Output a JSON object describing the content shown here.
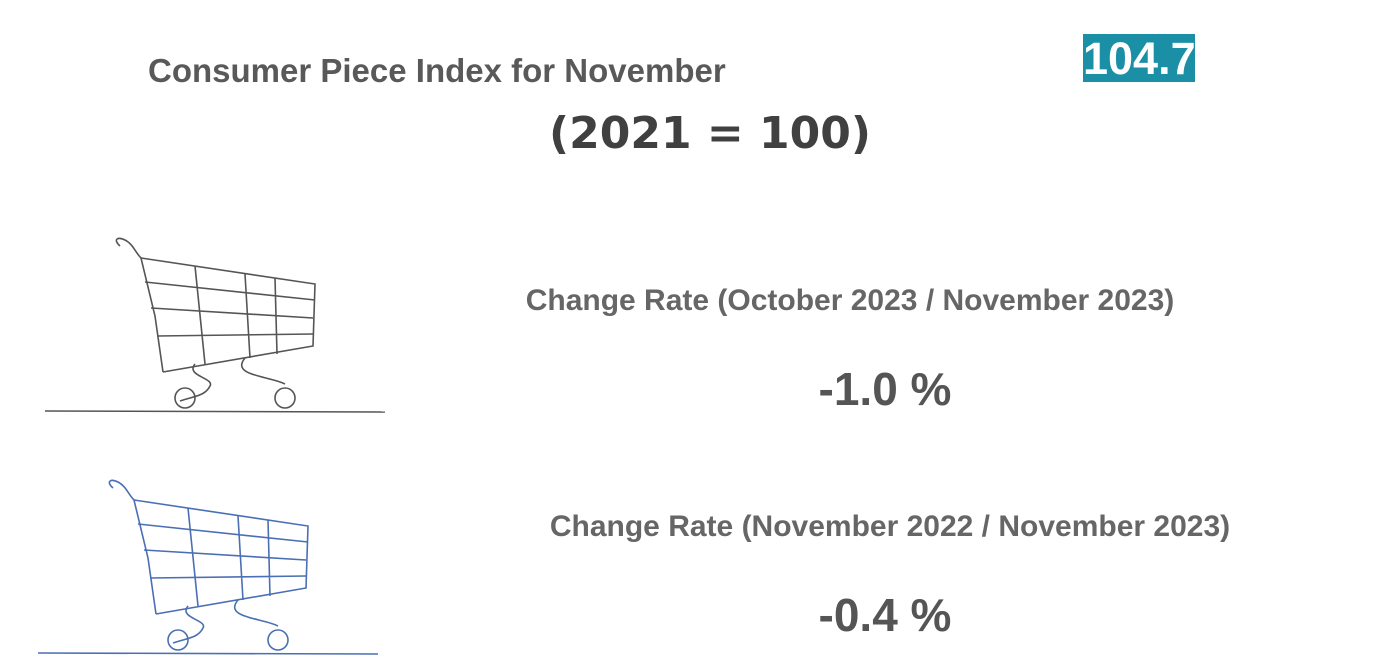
{
  "header": {
    "title": "Consumer Piece Index for November",
    "value": "104.7",
    "base": "(2021 = 100)"
  },
  "items": [
    {
      "label": "Change Rate (October 2023 / November 2023)",
      "value": "-1.0 %"
    },
    {
      "label": "Change Rate (November 2022 / November 2023)",
      "value": "-0.4 %"
    }
  ]
}
